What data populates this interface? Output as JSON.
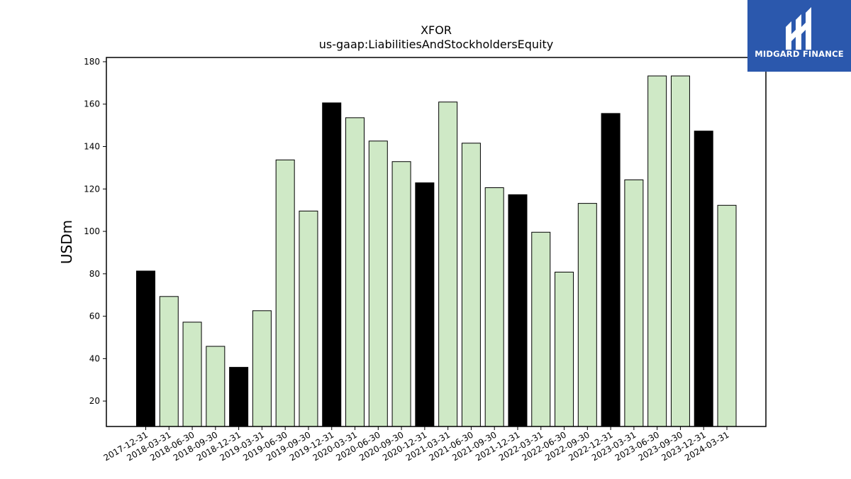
{
  "chart_data": {
    "type": "bar",
    "title": "XFOR",
    "subtitle": "us-gaap:LiabilitiesAndStockholdersEquity",
    "xlabel": "",
    "ylabel": "USDm",
    "ylim": [
      8,
      182
    ],
    "yticks": [
      20,
      40,
      60,
      80,
      100,
      120,
      140,
      160,
      180
    ],
    "grid": false,
    "categories": [
      "2017-12-31",
      "2018-03-31",
      "2018-06-30",
      "2018-09-30",
      "2018-12-31",
      "2019-03-31",
      "2019-06-30",
      "2019-09-30",
      "2019-12-31",
      "2020-03-31",
      "2020-06-30",
      "2020-09-30",
      "2020-12-31",
      "2021-03-31",
      "2021-06-30",
      "2021-09-30",
      "2021-12-31",
      "2022-03-31",
      "2022-06-30",
      "2022-09-30",
      "2022-12-31",
      "2023-03-31",
      "2023-06-30",
      "2023-09-30",
      "2023-12-31",
      "2024-03-31"
    ],
    "values": [
      81.3,
      69.3,
      57.2,
      45.8,
      35.9,
      62.6,
      133.7,
      109.6,
      160.6,
      153.6,
      142.6,
      132.9,
      122.9,
      161.0,
      141.6,
      120.6,
      117.3,
      99.6,
      80.8,
      113.2,
      155.6,
      124.3,
      173.3,
      173.3,
      147.3,
      112.3
    ],
    "bar_kind": [
      "annual",
      "quarterly",
      "quarterly",
      "quarterly",
      "annual",
      "quarterly",
      "quarterly",
      "quarterly",
      "annual",
      "quarterly",
      "quarterly",
      "quarterly",
      "annual",
      "quarterly",
      "quarterly",
      "quarterly",
      "annual",
      "quarterly",
      "quarterly",
      "quarterly",
      "annual",
      "quarterly",
      "quarterly",
      "quarterly",
      "annual",
      "quarterly"
    ],
    "colors": {
      "annual": "#000000",
      "quarterly": "#cfe9c6",
      "edge": "#000000"
    }
  },
  "logo": {
    "text": "MIDGARD FINANCE",
    "bg": "#2b58ad",
    "fg": "#ffffff"
  }
}
